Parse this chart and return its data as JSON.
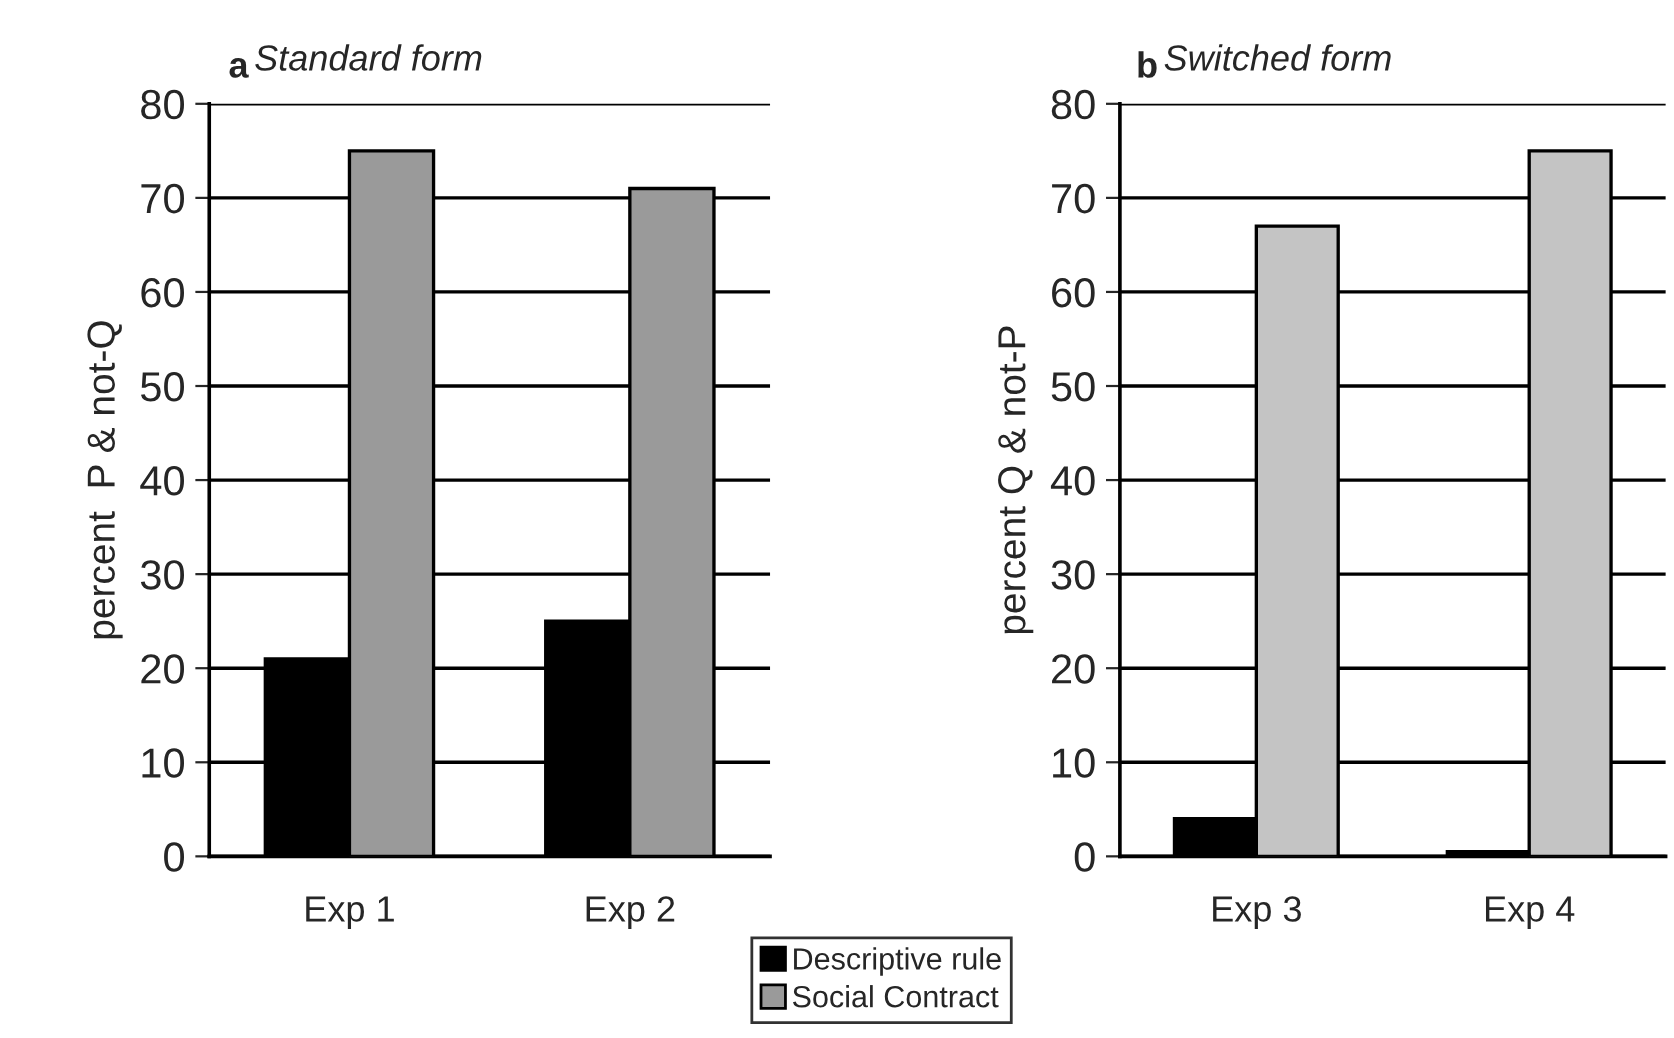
{
  "chart_data": [
    {
      "type": "bar",
      "title": "Standard form",
      "annotations": [
        "a"
      ],
      "ylabel": "percent  P & not-Q",
      "categories": [
        "Exp 1",
        "Exp 2"
      ],
      "series": [
        {
          "name": "Descriptive rule",
          "color": "#000000",
          "values": [
            21,
            25
          ]
        },
        {
          "name": "Social Contract",
          "color": "#9a9a9a",
          "values": [
            75,
            71
          ]
        }
      ],
      "ylim": [
        0,
        80
      ],
      "yticks": [
        0,
        10,
        20,
        30,
        40,
        50,
        60,
        70,
        80
      ],
      "grid": "y",
      "legend": "bottom right"
    },
    {
      "type": "bar",
      "title": "Switched form",
      "annotations": [
        "b"
      ],
      "ylabel": "percent Q & not-P",
      "categories": [
        "Exp 3",
        "Exp 4"
      ],
      "series": [
        {
          "color": "#000000",
          "values": [
            4,
            0.5
          ]
        },
        {
          "color": "#c4c4c4",
          "values": [
            67,
            75
          ]
        }
      ],
      "ylim": [
        0,
        80
      ],
      "yticks": [
        0,
        10,
        20,
        30,
        40,
        50,
        60,
        70,
        80
      ],
      "grid": "y"
    }
  ]
}
